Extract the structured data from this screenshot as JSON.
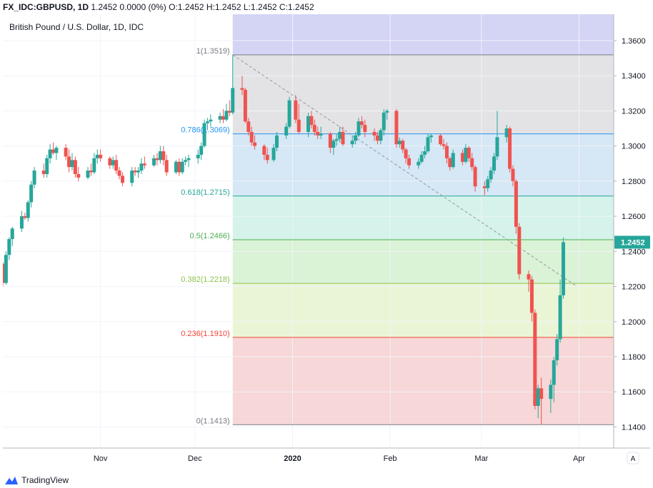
{
  "header": {
    "symbol": "FX_IDC:GBPUSD, 1D",
    "quote": "1.2452 0.0000 (0%)",
    "ohlc": "O:1.2452 H:1.2452 L:1.2452 C:1.2452"
  },
  "brand": {
    "name": "TradingView"
  },
  "chart_data": {
    "type": "candlestick",
    "title": "British Pound / U.S. Dollar, 1D, IDC",
    "ylim": [
      1.128,
      1.375
    ],
    "y_ticks": [
      "1.3600",
      "1.3400",
      "1.3200",
      "1.3000",
      "1.2800",
      "1.2600",
      "1.2400",
      "1.2200",
      "1.2000",
      "1.1800",
      "1.1600",
      "1.1400"
    ],
    "x_labels": [
      "Nov",
      "Dec",
      "2020",
      "Feb",
      "Mar",
      "Apr"
    ],
    "last_price": "1.2452",
    "auto_scale_label": "A",
    "fib_levels": [
      {
        "ratio": 1,
        "price": 1.3519,
        "label": "1(1.3519)",
        "color": "#787b86",
        "fill": "#e3e3e6"
      },
      {
        "ratio": 0.786,
        "price": 1.3069,
        "label": "0.786(1.3069)",
        "color": "#2196f3",
        "fill": "#d6e7f5"
      },
      {
        "ratio": 0.618,
        "price": 1.2715,
        "label": "0.618(1.2715)",
        "color": "#26a69a",
        "fill": "#d5f3ea"
      },
      {
        "ratio": 0.5,
        "price": 1.2466,
        "label": "0.5(1.2466)",
        "color": "#4caf50",
        "fill": "#daf2d6"
      },
      {
        "ratio": 0.382,
        "price": 1.2218,
        "label": "0.382(1.2218)",
        "color": "#8bc34a",
        "fill": "#eaf5d6"
      },
      {
        "ratio": 0.236,
        "price": 1.191,
        "label": "0.236(1.1910)",
        "color": "#f44336",
        "fill": "#f7d7d7"
      },
      {
        "ratio": 0,
        "price": 1.1413,
        "label": "0(1.1413)",
        "color": "#787b86",
        "fill": "#f7d7d7"
      }
    ],
    "fib_top_fill": "#d4d4f4",
    "trend_line": {
      "from": [
        "2019-12-13",
        1.3519
      ],
      "to": [
        "2020-03-31",
        1.2204
      ]
    },
    "colors": {
      "up": "#26a69a",
      "down": "#ef5350"
    },
    "candles": [
      [
        "2019-10-01",
        1.233,
        1.234,
        1.22,
        1.222
      ],
      [
        "2019-10-02",
        1.222,
        1.24,
        1.221,
        1.238
      ],
      [
        "2019-10-03",
        1.238,
        1.248,
        1.235,
        1.247
      ],
      [
        "2019-10-04",
        1.247,
        1.254,
        1.243,
        1.253
      ],
      [
        "2019-10-07",
        1.253,
        1.263,
        1.251,
        1.26
      ],
      [
        "2019-10-08",
        1.26,
        1.262,
        1.258,
        1.259
      ],
      [
        "2019-10-09",
        1.259,
        1.269,
        1.257,
        1.268
      ],
      [
        "2019-10-10",
        1.268,
        1.28,
        1.265,
        1.278
      ],
      [
        "2019-10-11",
        1.278,
        1.288,
        1.276,
        1.286
      ],
      [
        "2019-10-14",
        1.286,
        1.29,
        1.282,
        1.284
      ],
      [
        "2019-10-15",
        1.284,
        1.295,
        1.282,
        1.293
      ],
      [
        "2019-10-16",
        1.293,
        1.301,
        1.29,
        1.298
      ],
      [
        "2019-10-17",
        1.298,
        1.302,
        1.295,
        1.296
      ],
      [
        "2019-10-18",
        1.296,
        1.3,
        1.292,
        1.299
      ],
      [
        "2019-10-21",
        1.299,
        1.301,
        1.292,
        1.294
      ],
      [
        "2019-10-22",
        1.294,
        1.298,
        1.285,
        1.288
      ],
      [
        "2019-10-23",
        1.288,
        1.296,
        1.286,
        1.292
      ],
      [
        "2019-10-24",
        1.292,
        1.294,
        1.282,
        1.284
      ],
      [
        "2019-10-25",
        1.284,
        1.288,
        1.28,
        1.282
      ],
      [
        "2019-10-28",
        1.282,
        1.288,
        1.281,
        1.286
      ],
      [
        "2019-10-29",
        1.286,
        1.29,
        1.283,
        1.285
      ],
      [
        "2019-10-30",
        1.285,
        1.296,
        1.284,
        1.293
      ],
      [
        "2019-10-31",
        1.293,
        1.298,
        1.29,
        1.295
      ],
      [
        "2019-11-01",
        1.295,
        1.298,
        1.291,
        1.293
      ],
      [
        "2019-11-04",
        1.293,
        1.294,
        1.287,
        1.289
      ],
      [
        "2019-11-05",
        1.289,
        1.294,
        1.287,
        1.292
      ],
      [
        "2019-11-06",
        1.292,
        1.295,
        1.284,
        1.286
      ],
      [
        "2019-11-07",
        1.286,
        1.288,
        1.281,
        1.283
      ],
      [
        "2019-11-08",
        1.283,
        1.285,
        1.277,
        1.279
      ],
      [
        "2019-11-11",
        1.279,
        1.288,
        1.277,
        1.286
      ],
      [
        "2019-11-12",
        1.286,
        1.288,
        1.283,
        1.285
      ],
      [
        "2019-11-13",
        1.285,
        1.288,
        1.282,
        1.286
      ],
      [
        "2019-11-14",
        1.286,
        1.293,
        1.284,
        1.29
      ],
      [
        "2019-11-15",
        1.29,
        1.294,
        1.287,
        1.289
      ],
      [
        "2019-11-18",
        1.289,
        1.295,
        1.288,
        1.293
      ],
      [
        "2019-11-19",
        1.293,
        1.296,
        1.289,
        1.292
      ],
      [
        "2019-11-20",
        1.292,
        1.3,
        1.29,
        1.297
      ],
      [
        "2019-11-21",
        1.297,
        1.3,
        1.289,
        1.292
      ],
      [
        "2019-11-22",
        1.292,
        1.295,
        1.283,
        1.285
      ],
      [
        "2019-11-25",
        1.285,
        1.292,
        1.284,
        1.291
      ],
      [
        "2019-11-26",
        1.291,
        1.293,
        1.283,
        1.285
      ],
      [
        "2019-11-27",
        1.285,
        1.293,
        1.284,
        1.291
      ],
      [
        "2019-11-28",
        1.291,
        1.294,
        1.289,
        1.292
      ],
      [
        "2019-11-29",
        1.292,
        1.295,
        1.288,
        1.293
      ],
      [
        "2019-12-02",
        1.293,
        1.298,
        1.29,
        1.295
      ],
      [
        "2019-12-03",
        1.295,
        1.302,
        1.292,
        1.3
      ],
      [
        "2019-12-04",
        1.3,
        1.315,
        1.299,
        1.313
      ],
      [
        "2019-12-05",
        1.313,
        1.316,
        1.309,
        1.314
      ],
      [
        "2019-12-06",
        1.314,
        1.318,
        1.311,
        1.315
      ],
      [
        "2019-12-09",
        1.315,
        1.319,
        1.313,
        1.317
      ],
      [
        "2019-12-10",
        1.317,
        1.321,
        1.313,
        1.315
      ],
      [
        "2019-12-11",
        1.315,
        1.324,
        1.314,
        1.32
      ],
      [
        "2019-12-12",
        1.32,
        1.326,
        1.317,
        1.319
      ],
      [
        "2019-12-13",
        1.319,
        1.3519,
        1.318,
        1.333
      ],
      [
        "2019-12-16",
        1.333,
        1.34,
        1.329,
        1.332
      ],
      [
        "2019-12-17",
        1.332,
        1.333,
        1.313,
        1.314
      ],
      [
        "2019-12-18",
        1.314,
        1.316,
        1.306,
        1.308
      ],
      [
        "2019-12-19",
        1.308,
        1.311,
        1.3,
        1.302
      ],
      [
        "2019-12-20",
        1.302,
        1.306,
        1.298,
        1.3
      ],
      [
        "2019-12-23",
        1.3,
        1.301,
        1.292,
        1.295
      ],
      [
        "2019-12-24",
        1.295,
        1.299,
        1.29,
        1.292
      ],
      [
        "2019-12-26",
        1.292,
        1.301,
        1.291,
        1.299
      ],
      [
        "2019-12-27",
        1.299,
        1.308,
        1.297,
        1.306
      ],
      [
        "2019-12-30",
        1.306,
        1.313,
        1.304,
        1.311
      ],
      [
        "2019-12-31",
        1.311,
        1.328,
        1.31,
        1.326
      ],
      [
        "2020-01-02",
        1.326,
        1.329,
        1.313,
        1.315
      ],
      [
        "2020-01-03",
        1.315,
        1.324,
        1.307,
        1.308
      ],
      [
        "2020-01-06",
        1.308,
        1.319,
        1.305,
        1.317
      ],
      [
        "2020-01-07",
        1.317,
        1.32,
        1.31,
        1.312
      ],
      [
        "2020-01-08",
        1.312,
        1.315,
        1.306,
        1.308
      ],
      [
        "2020-01-09",
        1.308,
        1.311,
        1.304,
        1.306
      ],
      [
        "2020-01-10",
        1.306,
        1.311,
        1.304,
        1.307
      ],
      [
        "2020-01-13",
        1.307,
        1.308,
        1.296,
        1.299
      ],
      [
        "2020-01-14",
        1.299,
        1.304,
        1.295,
        1.303
      ],
      [
        "2020-01-15",
        1.303,
        1.307,
        1.3,
        1.304
      ],
      [
        "2020-01-16",
        1.304,
        1.311,
        1.302,
        1.308
      ],
      [
        "2020-01-17",
        1.308,
        1.311,
        1.3,
        1.301
      ],
      [
        "2020-01-20",
        1.301,
        1.306,
        1.299,
        1.303
      ],
      [
        "2020-01-21",
        1.303,
        1.308,
        1.301,
        1.306
      ],
      [
        "2020-01-22",
        1.306,
        1.316,
        1.305,
        1.314
      ],
      [
        "2020-01-23",
        1.314,
        1.317,
        1.31,
        1.312
      ],
      [
        "2020-01-24",
        1.312,
        1.315,
        1.305,
        1.308
      ],
      [
        "2020-01-27",
        1.308,
        1.31,
        1.303,
        1.306
      ],
      [
        "2020-01-28",
        1.306,
        1.308,
        1.301,
        1.303
      ],
      [
        "2020-01-29",
        1.303,
        1.31,
        1.301,
        1.309
      ],
      [
        "2020-01-30",
        1.309,
        1.321,
        1.306,
        1.319
      ],
      [
        "2020-01-31",
        1.319,
        1.321,
        1.315,
        1.32
      ],
      [
        "2020-02-03",
        1.32,
        1.321,
        1.299,
        1.301
      ],
      [
        "2020-02-04",
        1.301,
        1.305,
        1.299,
        1.303
      ],
      [
        "2020-02-05",
        1.303,
        1.304,
        1.296,
        1.298
      ],
      [
        "2020-02-06",
        1.298,
        1.299,
        1.29,
        1.293
      ],
      [
        "2020-02-07",
        1.293,
        1.295,
        1.287,
        1.289
      ],
      [
        "2020-02-10",
        1.289,
        1.293,
        1.287,
        1.291
      ],
      [
        "2020-02-11",
        1.291,
        1.297,
        1.29,
        1.295
      ],
      [
        "2020-02-12",
        1.295,
        1.3,
        1.293,
        1.297
      ],
      [
        "2020-02-13",
        1.297,
        1.307,
        1.296,
        1.305
      ],
      [
        "2020-02-14",
        1.305,
        1.307,
        1.302,
        1.306
      ],
      [
        "2020-02-17",
        1.306,
        1.307,
        1.3,
        1.301
      ],
      [
        "2020-02-18",
        1.301,
        1.304,
        1.298,
        1.3
      ],
      [
        "2020-02-19",
        1.3,
        1.302,
        1.29,
        1.293
      ],
      [
        "2020-02-20",
        1.293,
        1.294,
        1.286,
        1.288
      ],
      [
        "2020-02-21",
        1.288,
        1.298,
        1.287,
        1.296
      ],
      [
        "2020-02-24",
        1.296,
        1.298,
        1.289,
        1.291
      ],
      [
        "2020-02-25",
        1.291,
        1.301,
        1.29,
        1.299
      ],
      [
        "2020-02-26",
        1.299,
        1.3,
        1.291,
        1.293
      ],
      [
        "2020-02-27",
        1.293,
        1.296,
        1.286,
        1.288
      ],
      [
        "2020-02-28",
        1.288,
        1.289,
        1.274,
        1.277
      ],
      [
        "2020-03-02",
        1.277,
        1.28,
        1.272,
        1.276
      ],
      [
        "2020-03-03",
        1.276,
        1.283,
        1.274,
        1.281
      ],
      [
        "2020-03-04",
        1.281,
        1.288,
        1.279,
        1.286
      ],
      [
        "2020-03-05",
        1.286,
        1.296,
        1.284,
        1.294
      ],
      [
        "2020-03-06",
        1.294,
        1.32,
        1.292,
        1.305
      ],
      [
        "2020-03-09",
        1.305,
        1.312,
        1.302,
        1.31
      ],
      [
        "2020-03-10",
        1.31,
        1.311,
        1.285,
        1.287
      ],
      [
        "2020-03-11",
        1.287,
        1.289,
        1.277,
        1.28
      ],
      [
        "2020-03-12",
        1.28,
        1.281,
        1.25,
        1.254
      ],
      [
        "2020-03-13",
        1.254,
        1.256,
        1.224,
        1.227
      ],
      [
        "2020-03-16",
        1.227,
        1.229,
        1.217,
        1.224
      ],
      [
        "2020-03-17",
        1.224,
        1.226,
        1.2,
        1.205
      ],
      [
        "2020-03-18",
        1.205,
        1.207,
        1.15,
        1.152
      ],
      [
        "2020-03-19",
        1.152,
        1.164,
        1.145,
        1.162
      ],
      [
        "2020-03-20",
        1.162,
        1.168,
        1.1413,
        1.156
      ],
      [
        "2020-03-23",
        1.156,
        1.167,
        1.148,
        1.164
      ],
      [
        "2020-03-24",
        1.164,
        1.18,
        1.154,
        1.178
      ],
      [
        "2020-03-25",
        1.178,
        1.193,
        1.175,
        1.19
      ],
      [
        "2020-03-26",
        1.19,
        1.224,
        1.188,
        1.215
      ],
      [
        "2020-03-27",
        1.215,
        1.248,
        1.213,
        1.2452
      ]
    ]
  }
}
